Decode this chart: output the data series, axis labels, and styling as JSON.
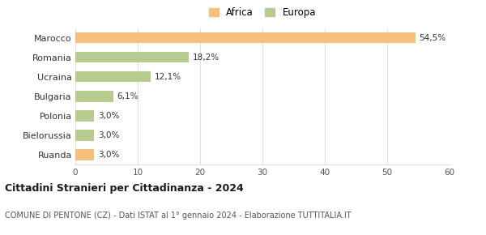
{
  "categories": [
    "Marocco",
    "Romania",
    "Ucraina",
    "Bulgaria",
    "Polonia",
    "Bielorussia",
    "Ruanda"
  ],
  "values": [
    54.5,
    18.2,
    12.1,
    6.1,
    3.0,
    3.0,
    3.0
  ],
  "labels": [
    "54,5%",
    "18,2%",
    "12,1%",
    "6,1%",
    "3,0%",
    "3,0%",
    "3,0%"
  ],
  "colors": [
    "#f5c07a",
    "#b5cc8e",
    "#b5cc8e",
    "#b5cc8e",
    "#b5cc8e",
    "#b5cc8e",
    "#f5c07a"
  ],
  "legend_labels": [
    "Africa",
    "Europa"
  ],
  "legend_colors": [
    "#f5c07a",
    "#b5cc8e"
  ],
  "title_bold": "Cittadini Stranieri per Cittadinanza - 2024",
  "subtitle": "COMUNE DI PENTONE (CZ) - Dati ISTAT al 1° gennaio 2024 - Elaborazione TUTTITALIA.IT",
  "xlim": [
    0,
    60
  ],
  "xticks": [
    0,
    10,
    20,
    30,
    40,
    50,
    60
  ],
  "background_color": "#ffffff",
  "grid_color": "#e0e0e0"
}
